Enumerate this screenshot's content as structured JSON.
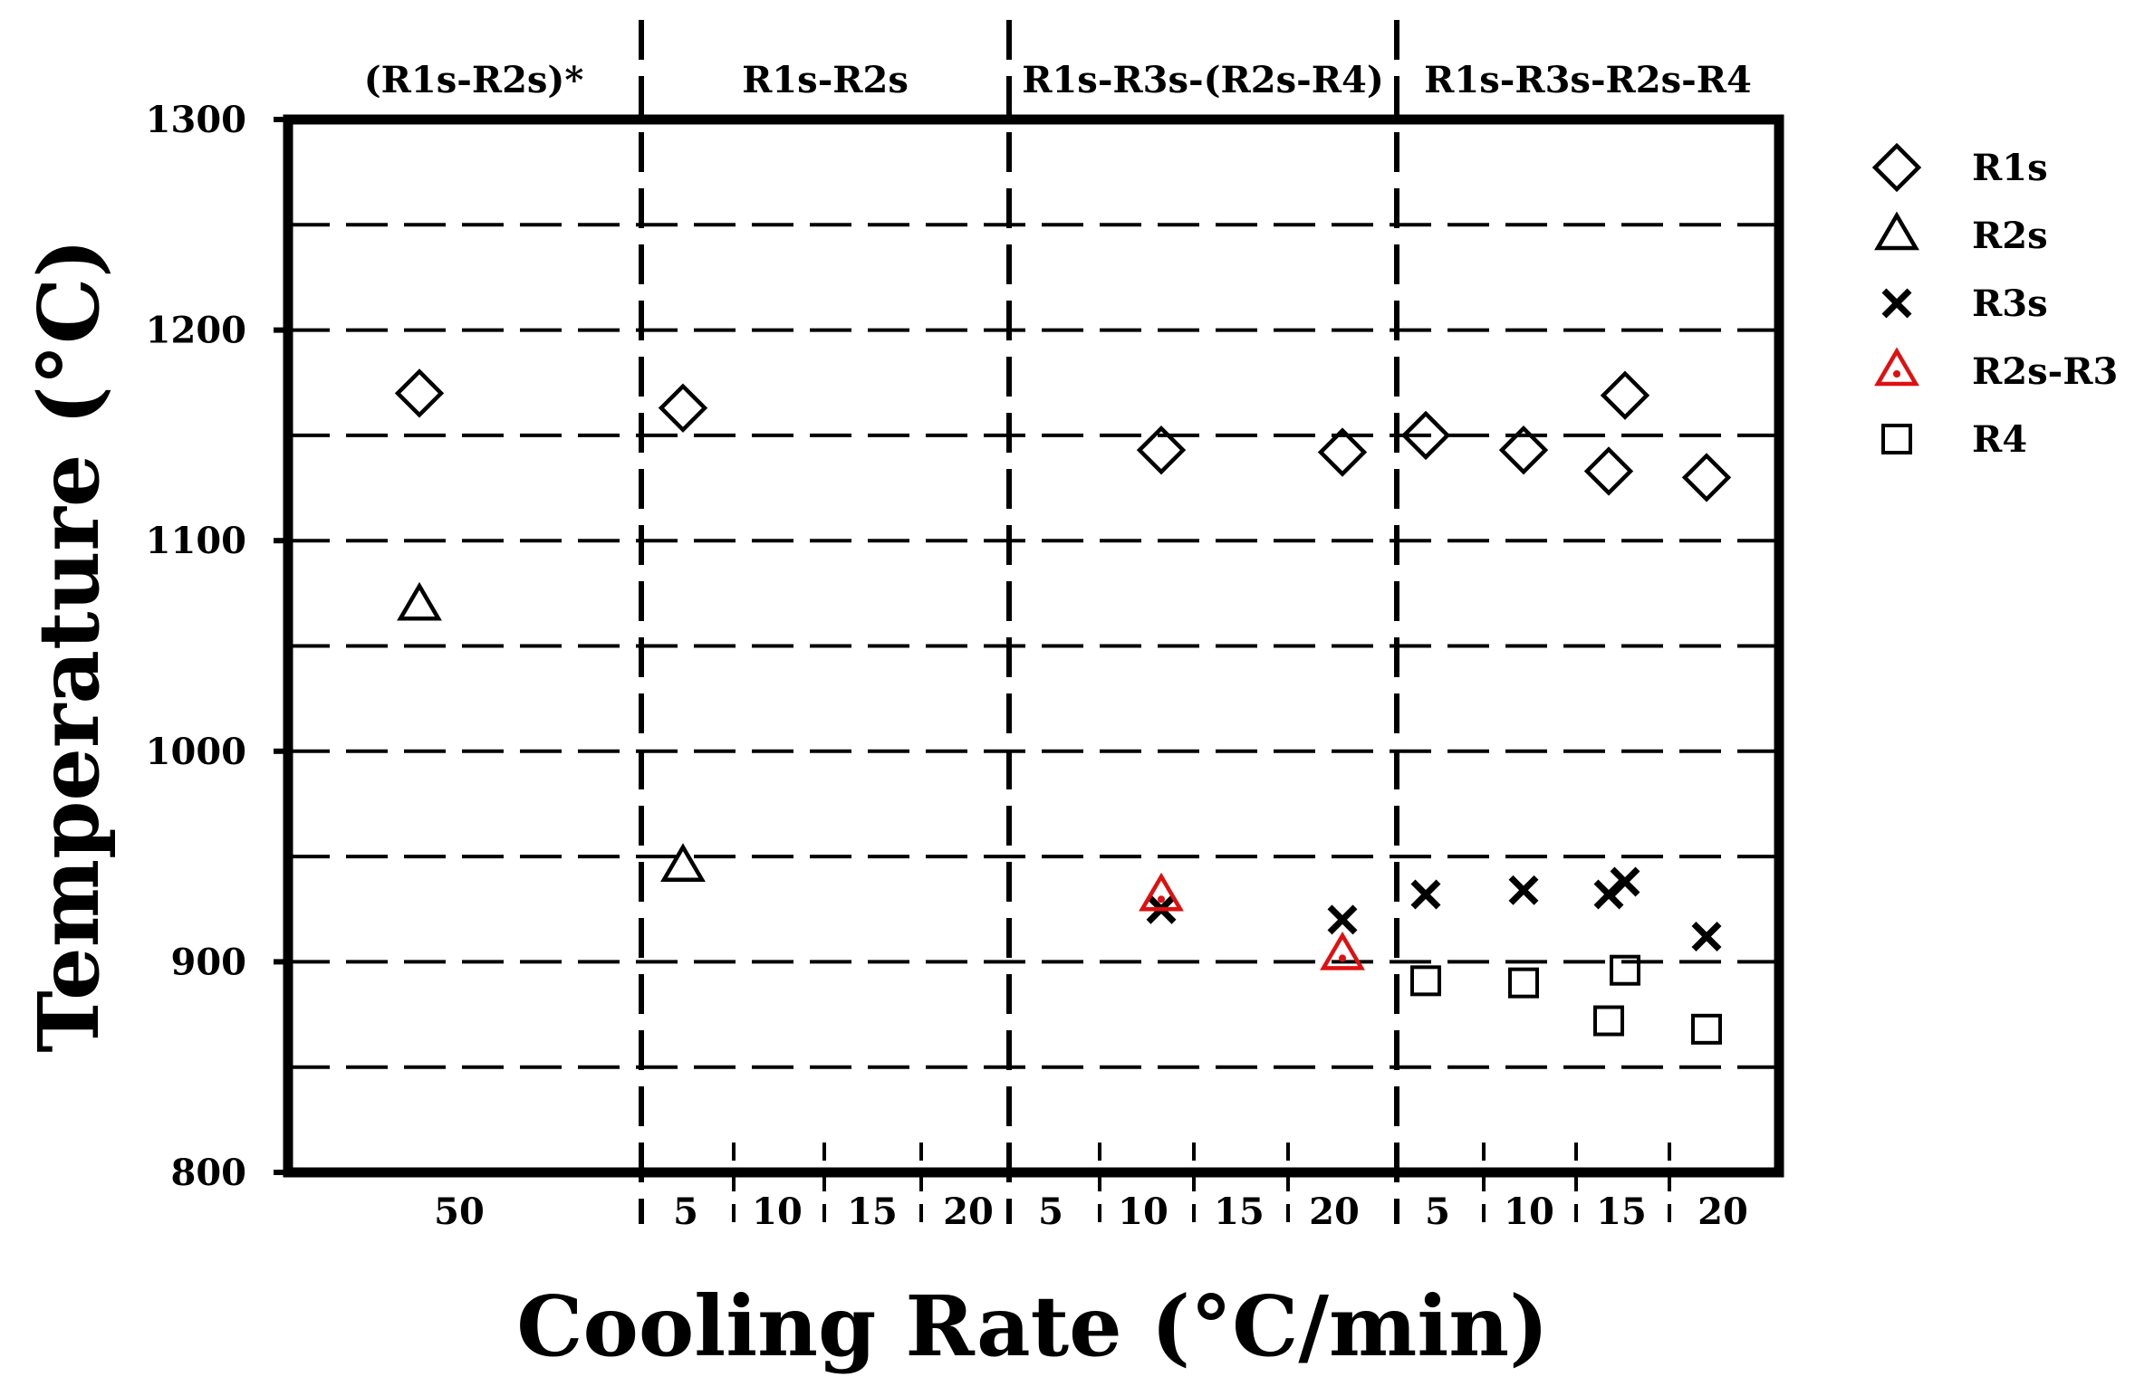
{
  "chart_data": {
    "type": "scatter",
    "title": "",
    "xlabel": "Cooling Rate (°C/min)",
    "ylabel": "Temperature (°C)",
    "ylim": [
      800,
      1300
    ],
    "y_ticks": [
      800,
      900,
      1000,
      1100,
      1200,
      1300
    ],
    "grid": "horizontal dashed every 50 °C",
    "legend_position": "right",
    "regions": [
      {
        "label": "(R1s-R2s)*",
        "ticks": [
          "50"
        ]
      },
      {
        "label": "R1s-R2s",
        "ticks": [
          "5",
          "10",
          "15",
          "20"
        ]
      },
      {
        "label": "R1s-R3s-(R2s-R4)",
        "ticks": [
          "5",
          "10",
          "15",
          "20"
        ]
      },
      {
        "label": "R1s-R3s-R2s-R4",
        "ticks": [
          "5",
          "10",
          "15",
          "20"
        ]
      }
    ],
    "series": [
      {
        "name": "R1s",
        "marker": "diamond",
        "color": "#000000",
        "points": [
          {
            "region": 0,
            "x": 50,
            "y": 1170
          },
          {
            "region": 1,
            "x": 5,
            "y": 1163
          },
          {
            "region": 2,
            "x": 10,
            "y": 1143
          },
          {
            "region": 2,
            "x": 20,
            "y": 1142
          },
          {
            "region": 3,
            "x": 5,
            "y": 1150
          },
          {
            "region": 3,
            "x": 10,
            "y": 1143
          },
          {
            "region": 3,
            "x": 15,
            "y": 1133
          },
          {
            "region": 3,
            "x": 15,
            "y": 1169
          },
          {
            "region": 3,
            "x": 20,
            "y": 1130
          }
        ]
      },
      {
        "name": "R2s",
        "marker": "triangle",
        "color": "#000000",
        "points": [
          {
            "region": 0,
            "x": 50,
            "y": 1069
          },
          {
            "region": 1,
            "x": 5,
            "y": 945
          }
        ]
      },
      {
        "name": "R3s",
        "marker": "x",
        "color": "#000000",
        "points": [
          {
            "region": 2,
            "x": 10,
            "y": 925
          },
          {
            "region": 2,
            "x": 20,
            "y": 920
          },
          {
            "region": 3,
            "x": 5,
            "y": 932
          },
          {
            "region": 3,
            "x": 10,
            "y": 934
          },
          {
            "region": 3,
            "x": 15,
            "y": 932
          },
          {
            "region": 3,
            "x": 15,
            "y": 938
          },
          {
            "region": 3,
            "x": 20,
            "y": 912
          }
        ]
      },
      {
        "name": "R2s-R3",
        "marker": "triangle-dot",
        "color": "#e01010",
        "points": [
          {
            "region": 2,
            "x": 10,
            "y": 931
          },
          {
            "region": 2,
            "x": 20,
            "y": 903
          }
        ]
      },
      {
        "name": "R4",
        "marker": "square",
        "color": "#000000",
        "points": [
          {
            "region": 3,
            "x": 5,
            "y": 891
          },
          {
            "region": 3,
            "x": 10,
            "y": 890
          },
          {
            "region": 3,
            "x": 15,
            "y": 872
          },
          {
            "region": 3,
            "x": 15,
            "y": 896
          },
          {
            "region": 3,
            "x": 20,
            "y": 868
          }
        ]
      }
    ]
  }
}
